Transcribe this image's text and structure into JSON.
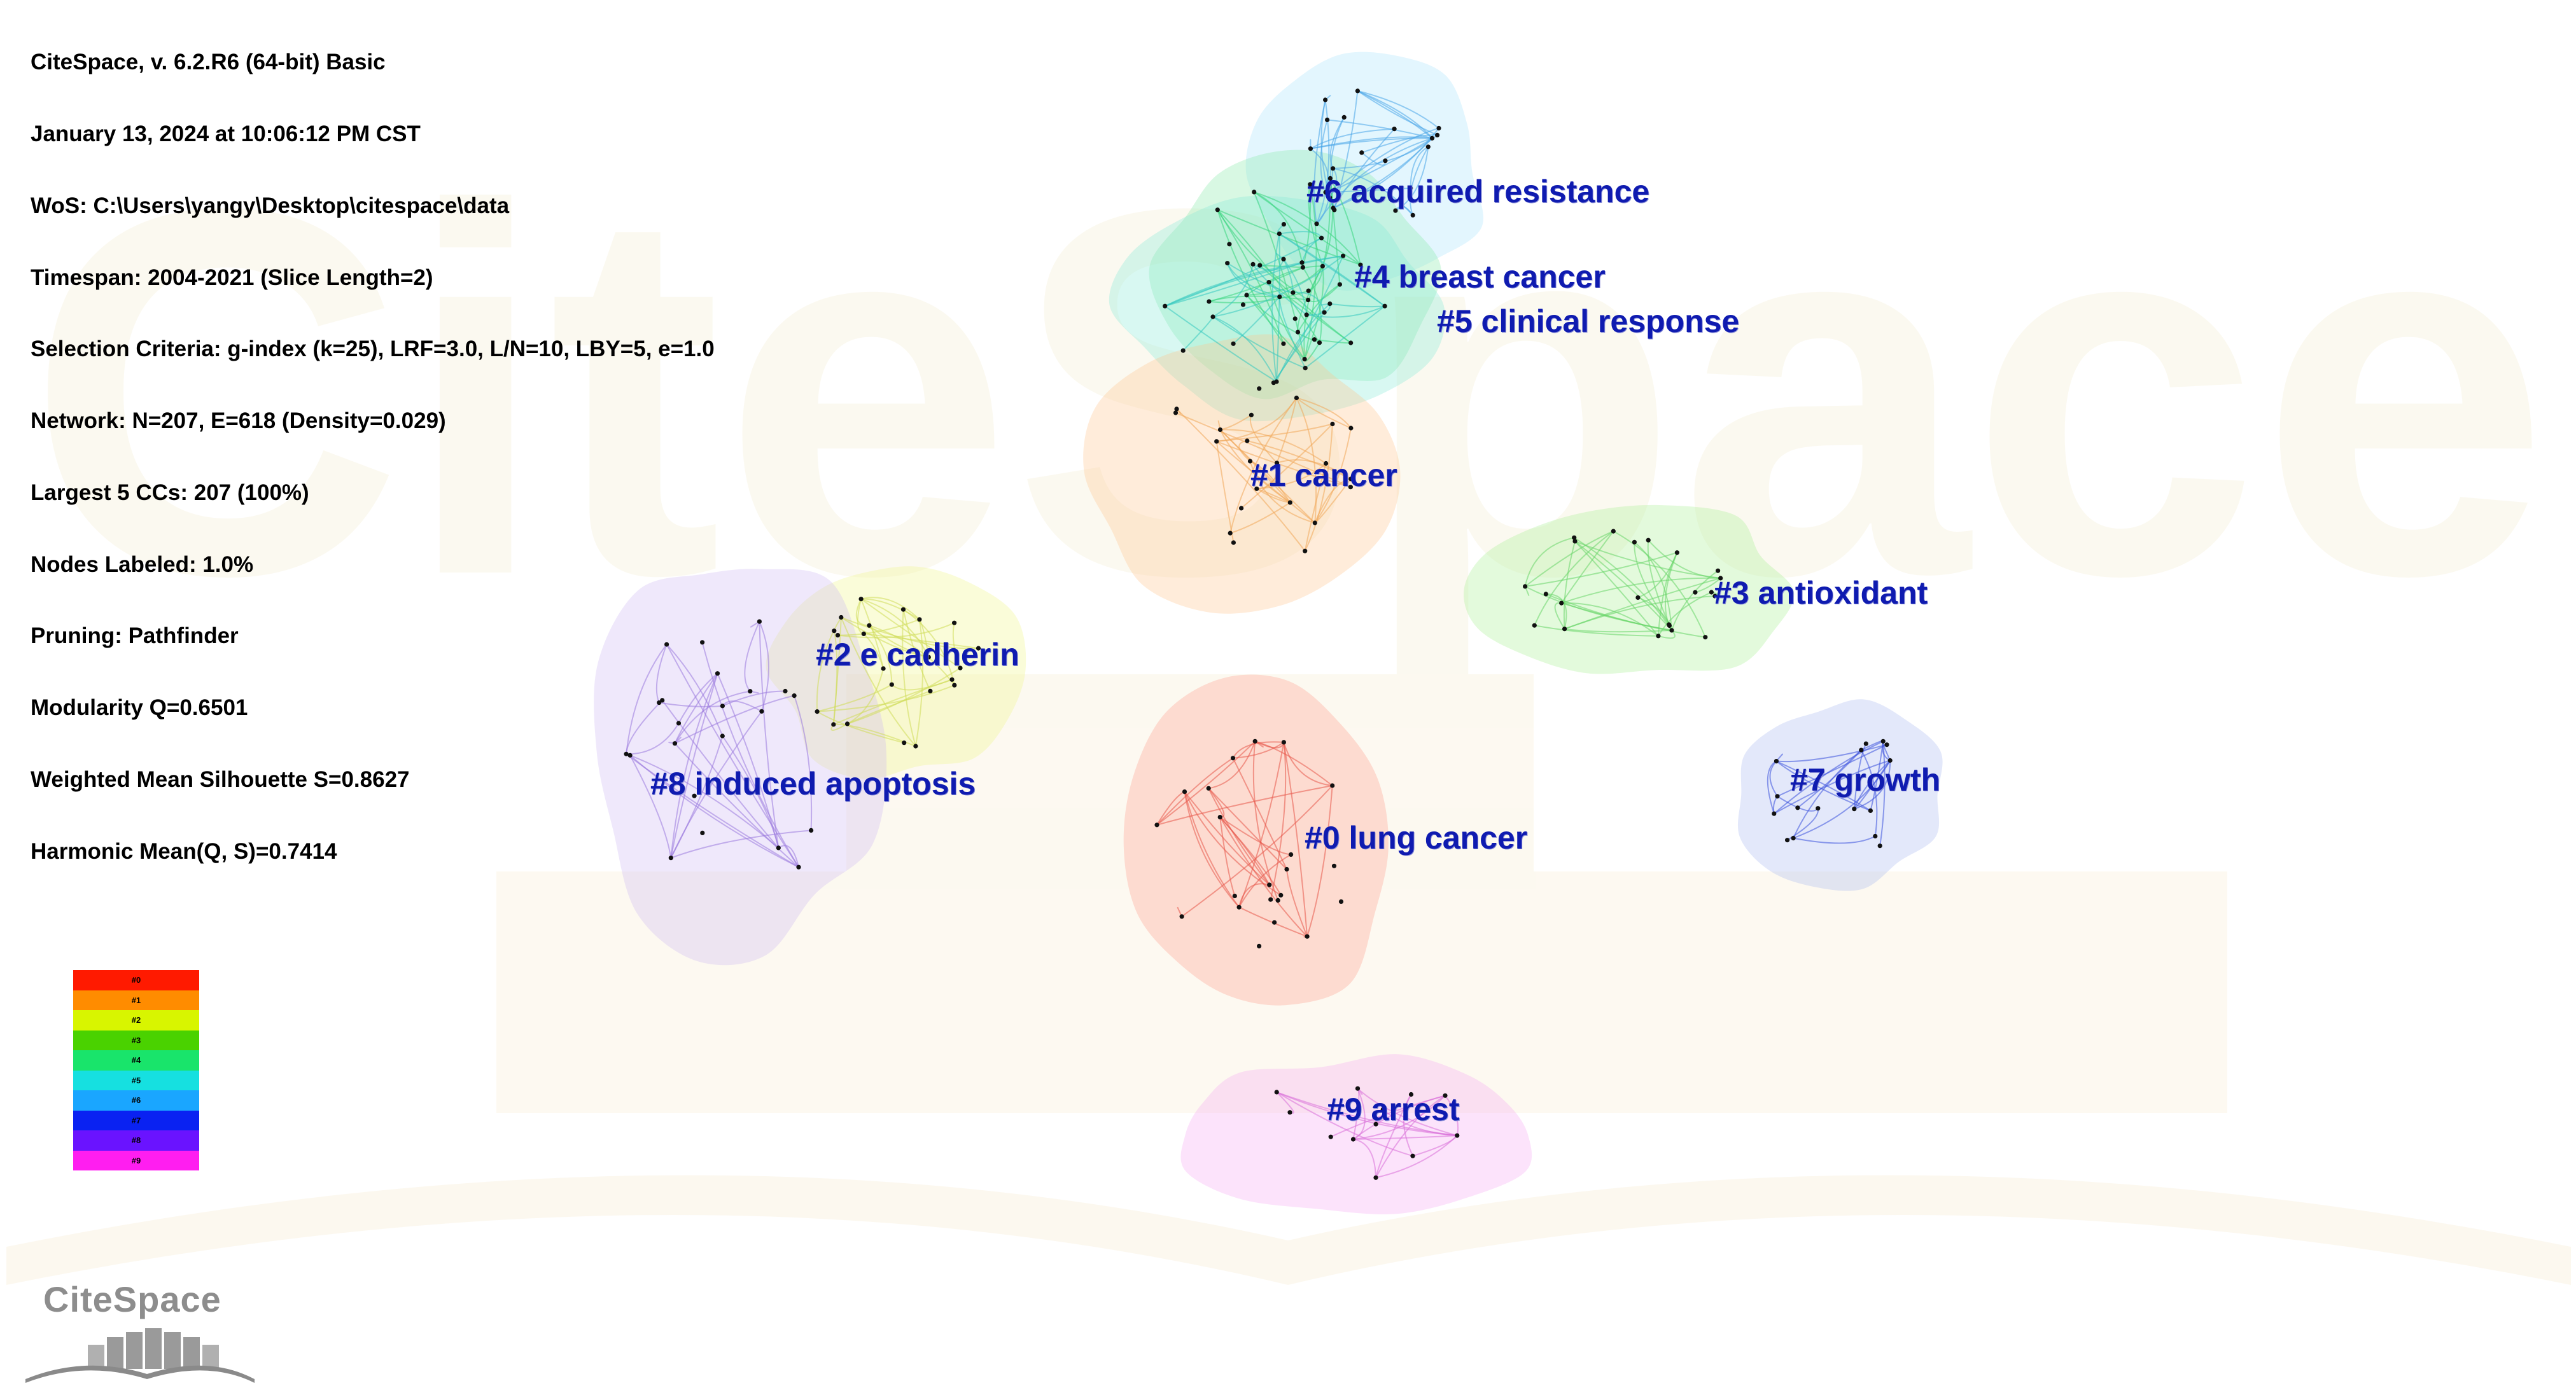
{
  "info_lines": [
    "CiteSpace, v. 6.2.R6 (64-bit) Basic",
    "January 13, 2024 at 10:06:12 PM CST",
    "WoS: C:\\Users\\yangy\\Desktop\\citespace\\data",
    "Timespan: 2004-2021 (Slice Length=2)",
    "Selection Criteria: g-index (k=25), LRF=3.0, L/N=10, LBY=5, e=1.0",
    "Network: N=207, E=618 (Density=0.029)",
    "Largest 5 CCs: 207 (100%)",
    "Nodes Labeled: 1.0%",
    "Pruning: Pathfinder",
    "Modularity Q=0.6501",
    "Weighted Mean Silhouette S=0.8627",
    "Harmonic Mean(Q, S)=0.7414"
  ],
  "clusters": [
    {
      "id": 0,
      "label": "#0 lung cancer",
      "color": "#ff9a8c"
    },
    {
      "id": 1,
      "label": "#1 cancer",
      "color": "#ffc48c"
    },
    {
      "id": 2,
      "label": "#2 e cadherin",
      "color": "#eef78a"
    },
    {
      "id": 3,
      "label": "#3 antioxidant",
      "color": "#a9ee93"
    },
    {
      "id": 4,
      "label": "#4 breast cancer",
      "color": "#86eaa8"
    },
    {
      "id": 5,
      "label": "#5 clinical response",
      "color": "#86e8d8"
    },
    {
      "id": 6,
      "label": "#6 acquired resistance",
      "color": "#a8e2fb"
    },
    {
      "id": 7,
      "label": "#7 growth",
      "color": "#a9b6ee"
    },
    {
      "id": 8,
      "label": "#8 induced apoptosis",
      "color": "#cdb8f3"
    },
    {
      "id": 9,
      "label": "#9 arrest",
      "color": "#f7a8f3"
    }
  ],
  "legend": {
    "items": [
      "#0",
      "#1",
      "#2",
      "#3",
      "#4",
      "#5",
      "#6",
      "#7",
      "#8",
      "#9"
    ],
    "colors": [
      "#ff1a00",
      "#ff8c00",
      "#d8f500",
      "#4ad200",
      "#19e46b",
      "#16e0e0",
      "#1aa6ff",
      "#0a22f2",
      "#6a13ff",
      "#ff1ef0"
    ]
  },
  "watermark": {
    "text": "CiteSpace"
  },
  "logo": {
    "text": "CiteSpace"
  }
}
